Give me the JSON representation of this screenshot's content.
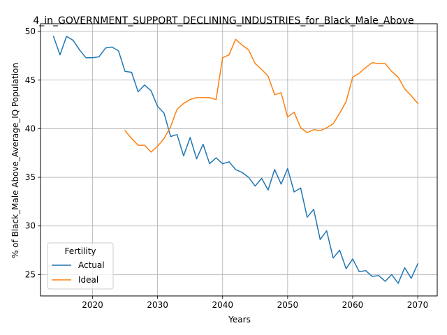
{
  "chart_data": {
    "type": "line",
    "title": "4_in_GOVERNMENT_SUPPORT_DECLINING_INDUSTRIES_for_Black_Male_Above",
    "xlabel": "Years",
    "ylabel": "% of Black_Male Above_Average_IQ Population",
    "xlim": [
      2012,
      2073
    ],
    "ylim": [
      22.8,
      50.8
    ],
    "xticks": [
      2020,
      2030,
      2040,
      2050,
      2060,
      2070
    ],
    "yticks": [
      25,
      30,
      35,
      40,
      45,
      50
    ],
    "grid": true,
    "legend": {
      "title": "Fertility",
      "position": "lower-left"
    },
    "series": [
      {
        "name": "Actual",
        "color": "#1f77b4",
        "x": [
          2014,
          2015,
          2016,
          2017,
          2018,
          2019,
          2020,
          2021,
          2022,
          2023,
          2024,
          2025,
          2026,
          2027,
          2028,
          2029,
          2030,
          2031,
          2032,
          2033,
          2034,
          2035,
          2036,
          2037,
          2038,
          2039,
          2040,
          2041,
          2042,
          2043,
          2044,
          2045,
          2046,
          2047,
          2048,
          2049,
          2050,
          2051,
          2052,
          2053,
          2054,
          2055,
          2056,
          2057,
          2058,
          2059,
          2060,
          2061,
          2062,
          2063,
          2064,
          2065,
          2066,
          2067,
          2068,
          2069,
          2070
        ],
        "y": [
          49.5,
          47.6,
          49.5,
          49.1,
          48.1,
          47.3,
          47.3,
          47.4,
          48.3,
          48.4,
          48.0,
          45.9,
          45.8,
          43.8,
          44.5,
          43.9,
          42.3,
          41.6,
          39.2,
          39.4,
          37.2,
          39.1,
          36.9,
          38.4,
          36.4,
          37.0,
          36.4,
          36.6,
          35.8,
          35.5,
          35.0,
          34.1,
          34.9,
          33.7,
          35.8,
          34.3,
          35.9,
          33.5,
          33.9,
          30.9,
          31.7,
          28.6,
          29.5,
          26.7,
          27.5,
          25.6,
          26.6,
          25.3,
          25.4,
          24.8,
          24.9,
          24.3,
          25.0,
          24.1,
          25.7,
          24.6,
          26.1
        ]
      },
      {
        "name": "Ideal",
        "color": "#ff7f0e",
        "x": [
          2025,
          2026,
          2027,
          2028,
          2029,
          2030,
          2031,
          2032,
          2033,
          2034,
          2035,
          2036,
          2037,
          2038,
          2039,
          2040,
          2041,
          2042,
          2043,
          2044,
          2045,
          2046,
          2047,
          2048,
          2049,
          2050,
          2051,
          2052,
          2053,
          2054,
          2055,
          2056,
          2057,
          2058,
          2059,
          2060,
          2061,
          2062,
          2063,
          2064,
          2065,
          2066,
          2067,
          2068,
          2069,
          2070
        ],
        "y": [
          39.8,
          39.0,
          38.3,
          38.3,
          37.6,
          38.2,
          39.0,
          40.2,
          42.0,
          42.6,
          43.0,
          43.2,
          43.2,
          43.2,
          43.0,
          47.3,
          47.6,
          49.2,
          48.6,
          48.1,
          46.7,
          46.1,
          45.4,
          43.5,
          43.7,
          41.2,
          41.7,
          40.1,
          39.6,
          39.9,
          39.8,
          40.1,
          40.5,
          41.6,
          42.8,
          45.3,
          45.7,
          46.3,
          46.8,
          46.7,
          46.7,
          45.9,
          45.3,
          44.1,
          43.4,
          42.6
        ]
      }
    ]
  }
}
